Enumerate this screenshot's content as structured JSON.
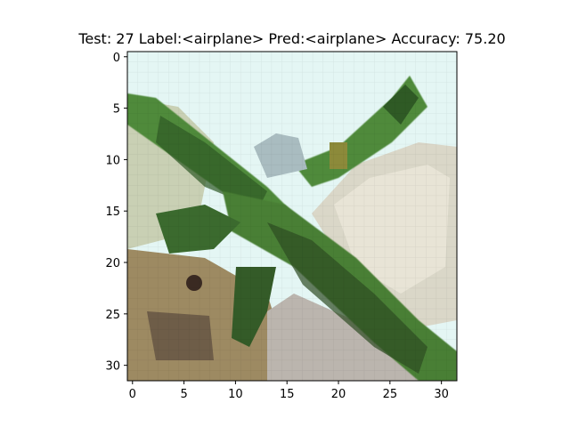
{
  "figure": {
    "title": "Test: 27  Label:<airplane>  Pred:<airplane>  Accuracy: 75.20"
  },
  "image": {
    "description_colors": {
      "sky": "#dff4f2",
      "plane_green": "#4f8a3a",
      "plane_dark": "#2f4f22",
      "cloud_white": "#e6e2d8",
      "ground_tan": "#a08a62",
      "ground_dark": "#6c5a43"
    },
    "grid_size": 32
  },
  "axes": {
    "x_ticks": [
      0,
      5,
      10,
      15,
      20,
      25,
      30
    ],
    "y_ticks": [
      0,
      5,
      10,
      15,
      20,
      25,
      30
    ],
    "x_tick_labels": [
      "0",
      "5",
      "10",
      "15",
      "20",
      "25",
      "30"
    ],
    "y_tick_labels": [
      "0",
      "5",
      "10",
      "15",
      "20",
      "25",
      "30"
    ]
  }
}
